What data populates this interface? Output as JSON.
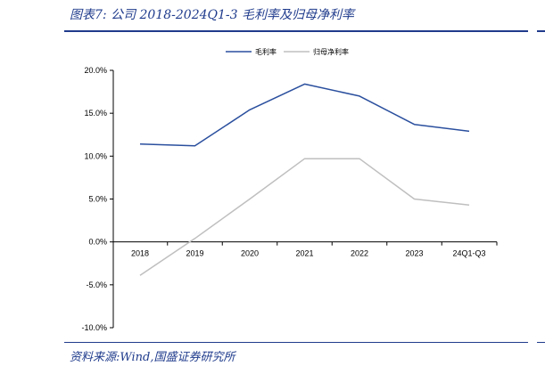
{
  "header": {
    "title": "图表7:  公司 2018-2024Q1-3 毛利率及归母净利率"
  },
  "footer": {
    "source": "资料来源:Wind,国盛证券研究所"
  },
  "colors": {
    "accent": "#1f3b8c",
    "gross": "#2a4f9e",
    "net": "#bfbfbf"
  },
  "chart_data": {
    "type": "line",
    "categories": [
      "2018",
      "2019",
      "2020",
      "2021",
      "2022",
      "2023",
      "24Q1-Q3"
    ],
    "series": [
      {
        "name": "毛利率",
        "values": [
          11.4,
          11.2,
          15.4,
          18.4,
          17.0,
          13.7,
          12.9
        ]
      },
      {
        "name": "归母净利率",
        "values": [
          -3.9,
          0.4,
          5.0,
          9.7,
          9.7,
          5.0,
          4.3
        ]
      }
    ],
    "ylim": [
      -10,
      20
    ],
    "yticks": [
      "20.0%",
      "15.0%",
      "10.0%",
      "5.0%",
      "0.0%",
      "-5.0%",
      "-10.0%"
    ],
    "ytick_values": [
      20,
      15,
      10,
      5,
      0,
      -5,
      -10
    ],
    "legend": "top-center",
    "grid": false
  }
}
